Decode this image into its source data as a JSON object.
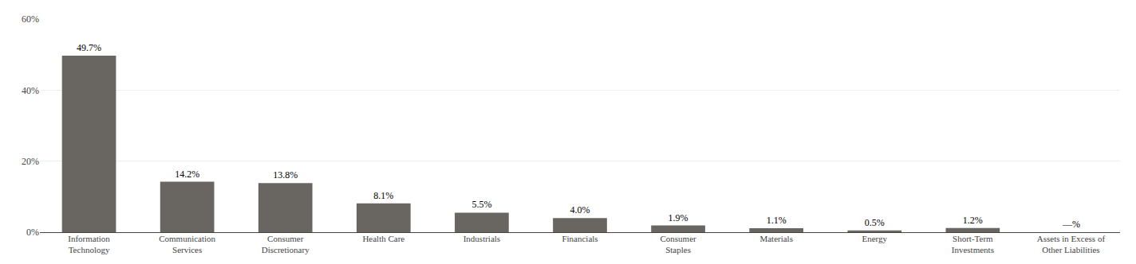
{
  "chart_data": {
    "type": "bar",
    "categories": [
      "Information\nTechnology",
      "Communication\nServices",
      "Consumer\nDiscretionary",
      "Health Care",
      "Industrials",
      "Financials",
      "Consumer\nStaples",
      "Materials",
      "Energy",
      "Short-Term\nInvestments",
      "Assets in Excess of\nOther Liabilities"
    ],
    "values": [
      49.7,
      14.2,
      13.8,
      8.1,
      5.5,
      4.0,
      1.9,
      1.1,
      0.5,
      1.2,
      0.0
    ],
    "value_labels": [
      "49.7%",
      "14.2%",
      "13.8%",
      "8.1%",
      "5.5%",
      "4.0%",
      "1.9%",
      "1.1%",
      "0.5%",
      "1.2%",
      "—%"
    ],
    "data_labels": true,
    "color": "#696560",
    "ylim": [
      0,
      60
    ],
    "yticks": [
      {
        "value": 0,
        "label": "0%"
      },
      {
        "value": 20,
        "label": "20%"
      },
      {
        "value": 40,
        "label": "40%"
      },
      {
        "value": 60,
        "label": "60%"
      }
    ],
    "grid": true
  }
}
